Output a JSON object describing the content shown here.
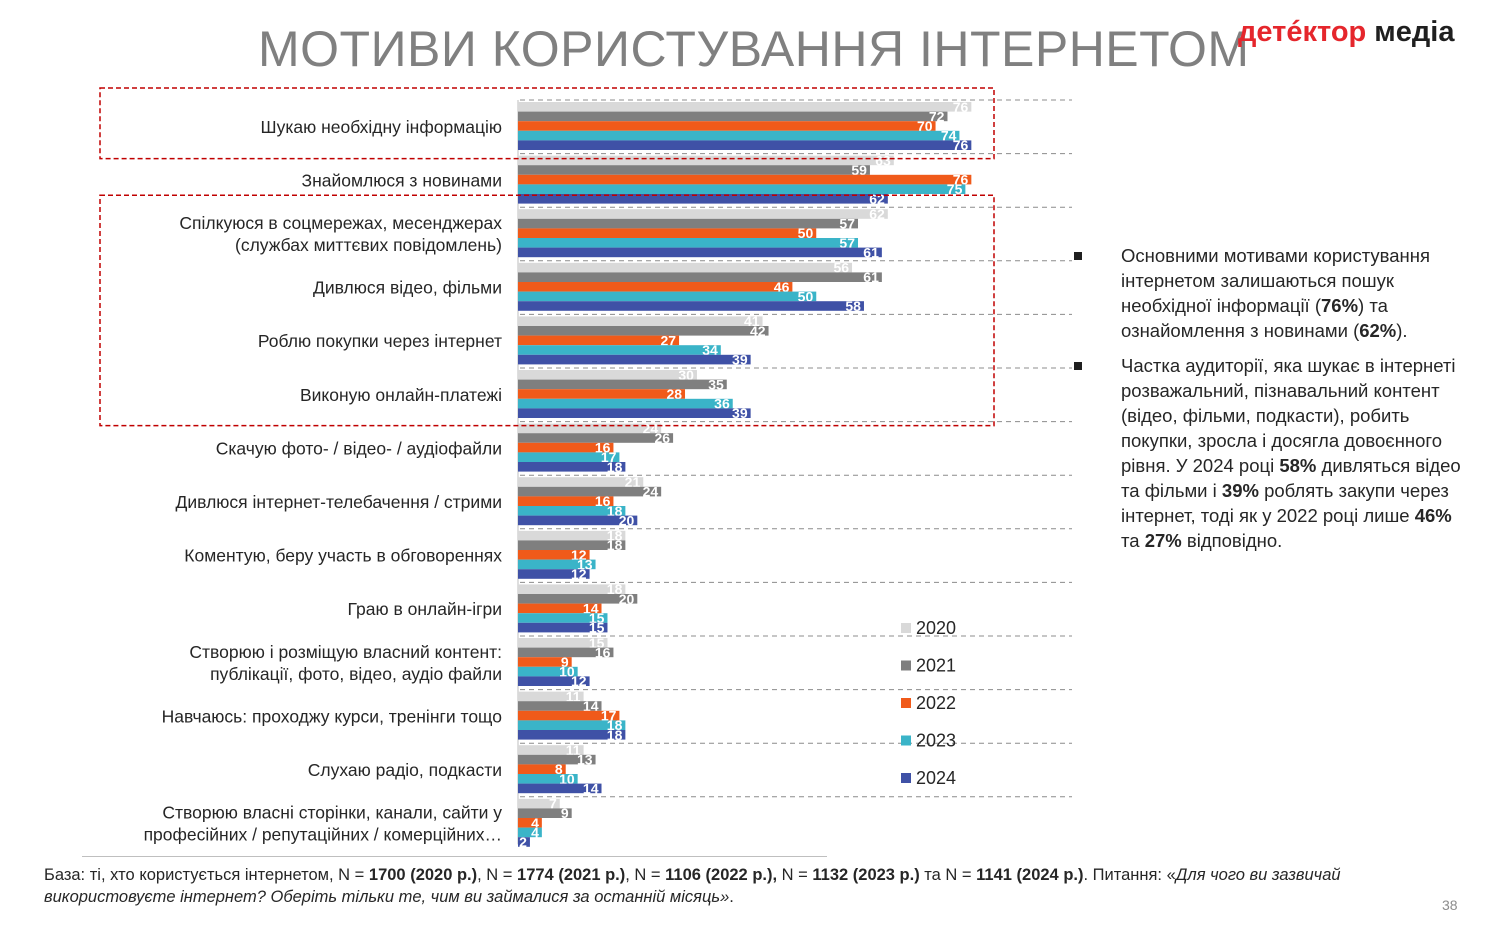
{
  "header": {
    "title": "МОТИВИ КОРИСТУВАННЯ ІНТЕРНЕТОМ",
    "logo_part1": "детéктор",
    "logo_part2": " медіа"
  },
  "chart_data": {
    "type": "bar",
    "orientation": "horizontal",
    "xlim": [
      0,
      80
    ],
    "categories": [
      [
        "Шукаю необхідну інформацію"
      ],
      [
        "Знайомлюся з новинами"
      ],
      [
        "Спілкуюся в соцмережах, месенджерах",
        "(службах миттєвих повідомлень)"
      ],
      [
        "Дивлюся відео, фільми"
      ],
      [
        "Роблю покупки через інтернет"
      ],
      [
        "Виконую онлайн-платежі"
      ],
      [
        "Скачую фото- / відео- / аудіофайли"
      ],
      [
        "Дивлюся інтернет-телебачення / стрими"
      ],
      [
        "Коментую, беру участь в обговореннях"
      ],
      [
        "Граю в онлайн-ігри"
      ],
      [
        "Створюю і розміщую власний контент:",
        "публікації, фото, відео, аудіо файли"
      ],
      [
        "Навчаюсь: проходжу курси, тренінги тощо"
      ],
      [
        "Слухаю радіо, подкасти"
      ],
      [
        "Створюю власні сторінки, канали, сайти у",
        "професійних / репутаційних / комерційних…"
      ]
    ],
    "series": [
      {
        "name": "2020",
        "color": "#d9d9d9",
        "values": [
          76,
          63,
          62,
          56,
          41,
          30,
          24,
          21,
          18,
          18,
          15,
          11,
          11,
          7
        ]
      },
      {
        "name": "2021",
        "color": "#7f7f7f",
        "values": [
          72,
          59,
          57,
          61,
          42,
          35,
          26,
          24,
          18,
          20,
          16,
          14,
          13,
          9
        ]
      },
      {
        "name": "2022",
        "color": "#f05a1a",
        "values": [
          70,
          76,
          50,
          46,
          27,
          28,
          16,
          16,
          12,
          14,
          9,
          17,
          8,
          4
        ]
      },
      {
        "name": "2023",
        "color": "#3ab4c8",
        "values": [
          74,
          75,
          57,
          50,
          34,
          36,
          17,
          18,
          13,
          15,
          10,
          18,
          10,
          4
        ]
      },
      {
        "name": "2024",
        "color": "#3f51a6",
        "values": [
          76,
          62,
          61,
          58,
          39,
          39,
          18,
          20,
          12,
          15,
          12,
          18,
          14,
          2
        ]
      }
    ],
    "legend_position": "right",
    "highlight_boxes": [
      [
        0,
        0
      ],
      [
        2,
        5
      ]
    ],
    "highlight_color": "#c00000"
  },
  "bullets": [
    {
      "runs": [
        {
          "t": "Основними мотивами користування інтернетом залишаються пошук необхідної інформації ("
        },
        {
          "t": "76%",
          "b": true
        },
        {
          "t": ") та ознайомлення з новинами ("
        },
        {
          "t": "62%",
          "b": true
        },
        {
          "t": ")."
        }
      ]
    },
    {
      "runs": [
        {
          "t": "Частка аудиторії, яка шукає в інтернеті розважальний, пізнавальний контент (відео, фільми, подкасти), робить покупки, зросла і досягла довоєнного рівня. У 2024 році "
        },
        {
          "t": "58%",
          "b": true
        },
        {
          "t": " дивляться відео та фільми і  "
        },
        {
          "t": "39%",
          "b": true
        },
        {
          "t": " роблять закупи через інтернет, тоді як у 2022 році лише "
        },
        {
          "t": "46%",
          "b": true
        },
        {
          "t": " та "
        },
        {
          "t": "27%",
          "b": true
        },
        {
          "t": " відповідно."
        }
      ]
    }
  ],
  "footnote": {
    "runs": [
      {
        "t": "База: ті, хто користується інтернетом, N = "
      },
      {
        "t": "1700 (2020 р.)",
        "b": true
      },
      {
        "t": ", N = "
      },
      {
        "t": "1774 (2021 р.)",
        "b": true
      },
      {
        "t": ", N = "
      },
      {
        "t": "1106 (2022 р.),",
        "b": true
      },
      {
        "t": " N = "
      },
      {
        "t": "1132 (2023 р.)",
        "b": true
      },
      {
        "t": " та N = "
      },
      {
        "t": "1141 (2024 р.)",
        "b": true
      },
      {
        "t": ". Питання: «"
      },
      {
        "t": "Для чого ви зазвичай використовуєте інтернет? Оберіть тільки те, чим ви займалися за останній місяць»",
        "i": true
      },
      {
        "t": "."
      }
    ]
  },
  "page_number": "38"
}
